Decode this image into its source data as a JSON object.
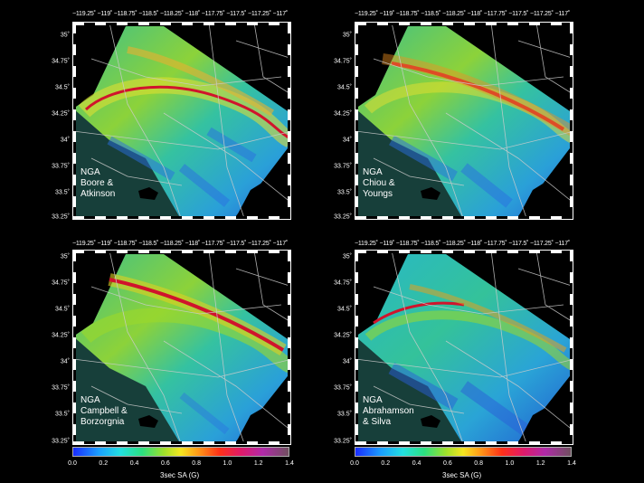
{
  "x_tick_labels": "−119.25˚ −119˚ −118.75˚ −118.5˚ −118.25˚ −118˚ −117.75˚ −117.5˚ −117.25˚ −117˚",
  "y_tick_labels": [
    "35˚",
    "34.75˚",
    "34.5˚",
    "34.25˚",
    "34˚",
    "33.75˚",
    "33.5˚",
    "33.25˚"
  ],
  "panels": [
    {
      "caption": "NGA\nBoore &\nAtkinson"
    },
    {
      "caption": "NGA\nChiou &\nYoungs"
    },
    {
      "caption": "NGA\nCampbell &\nBorzorgnia"
    },
    {
      "caption": "NGA\nAbrahamson\n& Silva"
    }
  ],
  "colorbar": {
    "title": "3sec SA (G)",
    "ticks": [
      "0.0",
      "0.2",
      "0.4",
      "0.6",
      "0.8",
      "1.0",
      "1.2",
      "1.4"
    ],
    "range": [
      0.0,
      1.4
    ]
  },
  "colors": {
    "ocean": "#173f3a",
    "land_low": "#1d6fd8",
    "land_mid": "#31c28a",
    "land_high": "#e8e030",
    "fault": "#d0142c"
  }
}
